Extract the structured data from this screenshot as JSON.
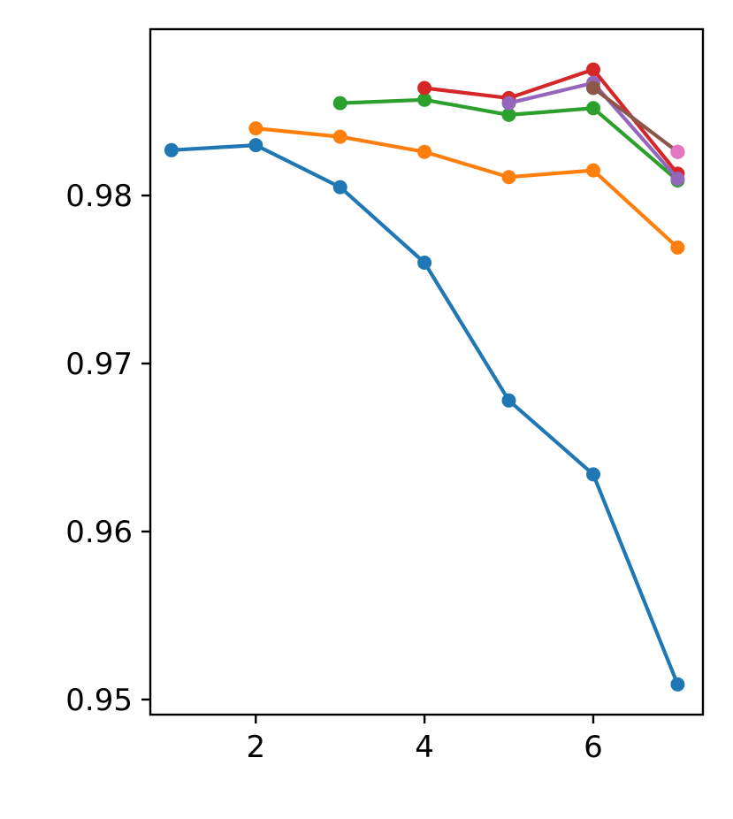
{
  "chart_data": {
    "type": "line",
    "title": "",
    "xlabel": "",
    "ylabel": "",
    "xlim": [
      0.75,
      7.3
    ],
    "ylim": [
      0.9491,
      0.9899
    ],
    "xticks": [
      2,
      4,
      6
    ],
    "xtick_labels": [
      "2",
      "4",
      "6"
    ],
    "yticks": [
      0.95,
      0.96,
      0.97,
      0.98
    ],
    "ytick_labels": [
      "0.95",
      "0.96",
      "0.97",
      "0.98"
    ],
    "grid": false,
    "series": [
      {
        "color": "#1f77b4",
        "x": [
          1,
          2,
          3,
          4,
          5,
          6,
          7
        ],
        "y": [
          0.9827,
          0.983,
          0.9805,
          0.976,
          0.9678,
          0.9634,
          0.9509
        ]
      },
      {
        "color": "#ff7f0e",
        "x": [
          2,
          3,
          4,
          5,
          6,
          7
        ],
        "y": [
          0.984,
          0.9835,
          0.9826,
          0.9811,
          0.9815,
          0.9769
        ]
      },
      {
        "color": "#2ca02c",
        "x": [
          3,
          4,
          5,
          6,
          7
        ],
        "y": [
          0.9855,
          0.9857,
          0.9848,
          0.9852,
          0.9809
        ]
      },
      {
        "color": "#d62728",
        "x": [
          4,
          5,
          6,
          7
        ],
        "y": [
          0.9864,
          0.9858,
          0.9875,
          0.9813
        ]
      },
      {
        "color": "#9467bd",
        "x": [
          5,
          6,
          7
        ],
        "y": [
          0.9855,
          0.9867,
          0.981
        ]
      },
      {
        "color": "#8c564b",
        "x": [
          6,
          7
        ],
        "y": [
          0.9864,
          0.9826
        ]
      },
      {
        "color": "#e377c2",
        "x": [
          7
        ],
        "y": [
          0.9826
        ]
      }
    ]
  }
}
